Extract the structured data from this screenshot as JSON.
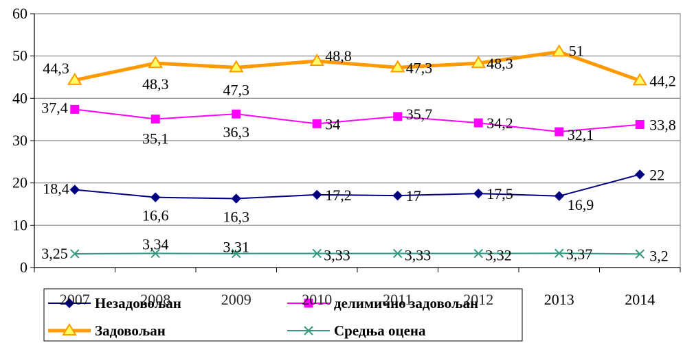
{
  "chart_data": {
    "type": "line",
    "categories": [
      "2007",
      "2008",
      "2009",
      "2010",
      "2011",
      "2012",
      "2013",
      "2014"
    ],
    "ylim": [
      0,
      60
    ],
    "yticks": [
      0,
      10,
      20,
      30,
      40,
      50,
      60
    ],
    "grid": "horizontal",
    "legend_position": "bottom-left",
    "series": [
      {
        "name": "Незадовољан",
        "values": [
          18.4,
          16.6,
          16.3,
          17.2,
          17,
          17.5,
          16.9,
          22
        ],
        "labels": [
          "18,4",
          "16,6",
          "16,3",
          "17,2",
          "17",
          "17,5",
          "16,9",
          "22"
        ],
        "color": "#000080",
        "marker": "diamond"
      },
      {
        "name": "делимично задовољан",
        "values": [
          37.4,
          35.1,
          36.3,
          34,
          35.7,
          34.2,
          32.1,
          33.8
        ],
        "labels": [
          "37,4",
          "35,1",
          "36,3",
          "34",
          "35,7",
          "34,2",
          "32,1",
          "33,8"
        ],
        "color": "#FF00FF",
        "marker": "square"
      },
      {
        "name": "Задовољан",
        "values": [
          44.3,
          48.3,
          47.3,
          48.8,
          47.3,
          48.3,
          51,
          44.2
        ],
        "labels": [
          "44,3",
          "48,3",
          "47,3",
          "48,8",
          "47,3",
          "48,3",
          "51",
          "44,2"
        ],
        "color": "#FF9900",
        "marker": "triangle"
      },
      {
        "name": "Средња оцена",
        "values": [
          3.25,
          3.34,
          3.31,
          3.33,
          3.33,
          3.32,
          3.37,
          3.2
        ],
        "labels": [
          "3,25",
          "3,34",
          "3,31",
          "3,33",
          "3,33",
          "3,32",
          "3,37",
          "3,2"
        ],
        "color": "#339980",
        "marker": "x"
      }
    ]
  }
}
